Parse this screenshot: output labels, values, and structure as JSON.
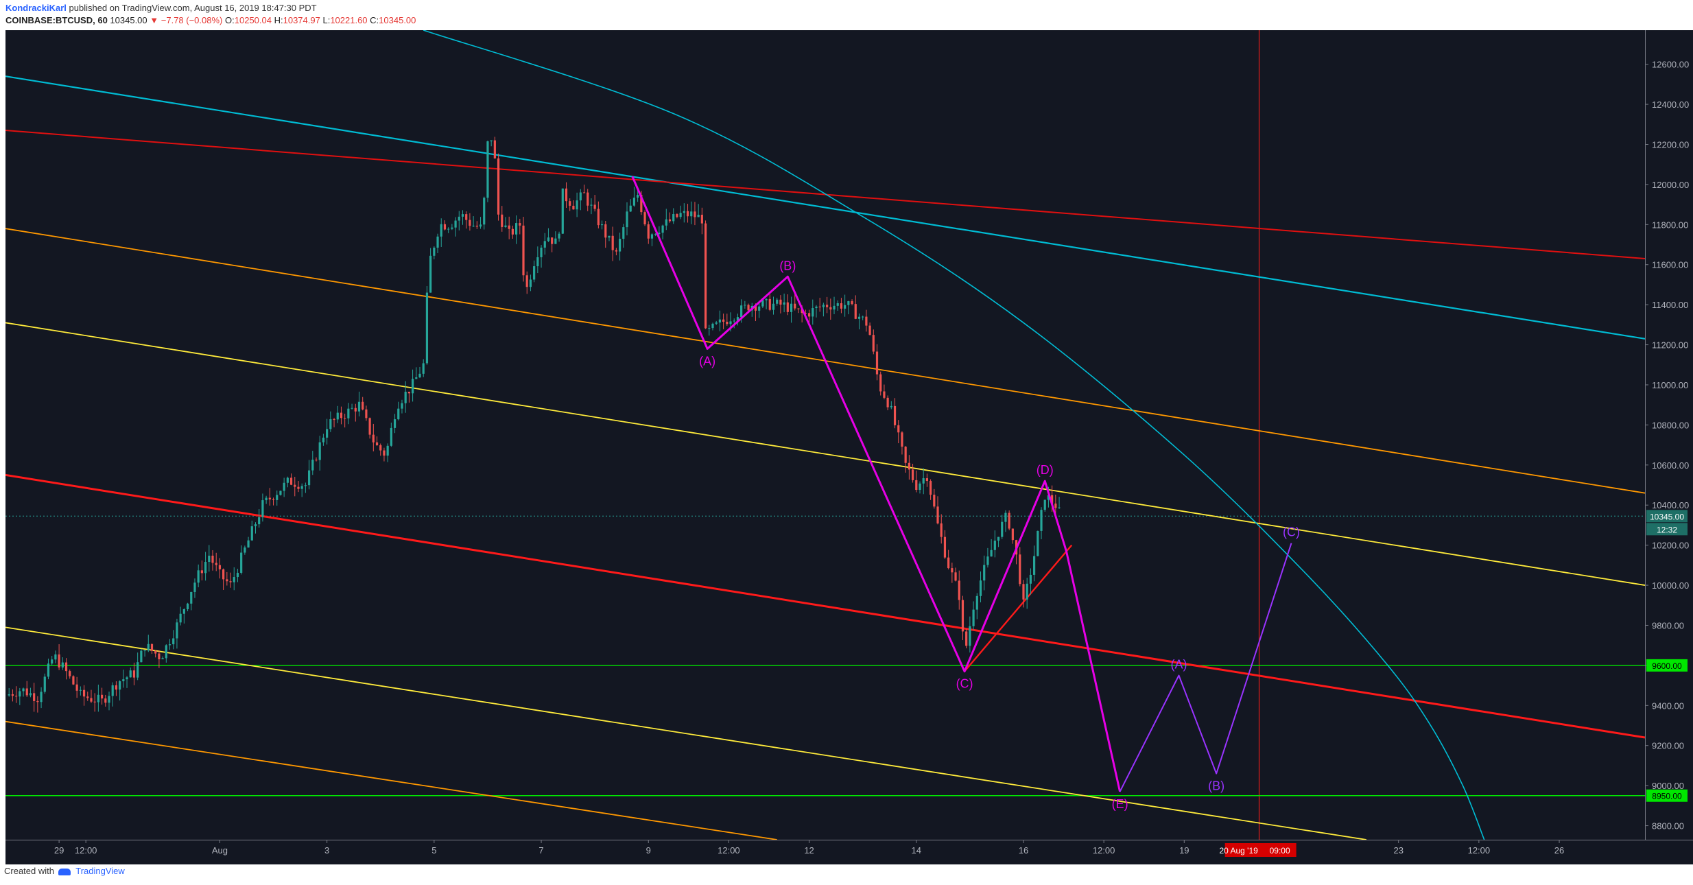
{
  "header": {
    "author": "KondrackiKarl",
    "published": "published on TradingView.com, August 16, 2019 18:47:30 PDT",
    "symbol": "COINBASE:BTCUSD, 60",
    "last": "10345.00",
    "change": "▼ −7.78 (−0.08%)",
    "o_label": "O:",
    "o_value": "10250.04",
    "h_label": "H:",
    "h_value": "10374.97",
    "l_label": "L:",
    "l_value": "10221.60",
    "c_label": "C:",
    "c_value": "10345.00"
  },
  "footer": {
    "created_with": "Created with",
    "brand": "TradingView"
  },
  "colors": {
    "background": "#131722",
    "up": "#26a69a",
    "down": "#ef5350",
    "cyan": "#00bcd4",
    "red": "#ff1a1a",
    "orange": "#ff9800",
    "yellow": "#ffeb3b",
    "green": "#00e600",
    "magenta": "#e600e6",
    "purple": "#9933ff",
    "vline": "#b71c1c"
  },
  "chart_data": {
    "type": "candlestick",
    "symbol": "COINBASE:BTCUSD",
    "timeframe": "60",
    "x_axis": {
      "unit": "days from July 28, 2019 (x = 1 is Jul 29)",
      "range": [
        0.0,
        30.6
      ],
      "ticks": [
        {
          "x": 1.0,
          "label": "29"
        },
        {
          "x": 1.5,
          "label": "12:00"
        },
        {
          "x": 4.0,
          "label": "Aug"
        },
        {
          "x": 6.0,
          "label": "3"
        },
        {
          "x": 8.0,
          "label": "5"
        },
        {
          "x": 10.0,
          "label": "7"
        },
        {
          "x": 12.0,
          "label": "9"
        },
        {
          "x": 13.5,
          "label": "12:00"
        },
        {
          "x": 15.0,
          "label": "12"
        },
        {
          "x": 17.0,
          "label": "14"
        },
        {
          "x": 19.0,
          "label": "16"
        },
        {
          "x": 20.5,
          "label": "12:00"
        },
        {
          "x": 22.0,
          "label": "19"
        },
        {
          "x": 26.0,
          "label": "23"
        },
        {
          "x": 27.5,
          "label": "12:00"
        },
        {
          "x": 29.0,
          "label": "26"
        }
      ],
      "highlight": {
        "x": 23.4,
        "label": "20 Aug '19",
        "time": "09:00"
      }
    },
    "y_axis": {
      "range": [
        8730,
        12770
      ],
      "ticks": [
        8800,
        9000,
        9200,
        9400,
        9600,
        9800,
        10000,
        10200,
        10400,
        10600,
        10800,
        11000,
        11200,
        11400,
        11600,
        11800,
        12000,
        12200,
        12400,
        12600
      ],
      "tick_labels": [
        "8800.00",
        "9000.00",
        "9200.00",
        "9400.00",
        "9600.00",
        "9800.00",
        "10000.00",
        "10200.00",
        "10400.00",
        "10600.00",
        "10800.00",
        "11000.00",
        "11200.00",
        "11400.00",
        "11600.00",
        "11800.00",
        "12000.00",
        "12200.00",
        "12400.00",
        "12600.00"
      ]
    },
    "price_path": [
      [
        0.0,
        9450
      ],
      [
        0.3,
        9480
      ],
      [
        0.6,
        9440
      ],
      [
        0.9,
        9650
      ],
      [
        1.1,
        9580
      ],
      [
        1.4,
        9450
      ],
      [
        1.8,
        9420
      ],
      [
        2.1,
        9520
      ],
      [
        2.4,
        9560
      ],
      [
        2.6,
        9700
      ],
      [
        2.9,
        9640
      ],
      [
        3.2,
        9800
      ],
      [
        3.5,
        10000
      ],
      [
        3.8,
        10150
      ],
      [
        4.0,
        10050
      ],
      [
        4.2,
        10000
      ],
      [
        4.5,
        10200
      ],
      [
        4.8,
        10400
      ],
      [
        5.0,
        10450
      ],
      [
        5.3,
        10520
      ],
      [
        5.6,
        10500
      ],
      [
        5.8,
        10650
      ],
      [
        6.0,
        10800
      ],
      [
        6.3,
        10850
      ],
      [
        6.6,
        10900
      ],
      [
        6.9,
        10700
      ],
      [
        7.1,
        10650
      ],
      [
        7.3,
        10900
      ],
      [
        7.6,
        11000
      ],
      [
        7.8,
        11100
      ],
      [
        7.9,
        11600
      ],
      [
        8.1,
        11800
      ],
      [
        8.3,
        11800
      ],
      [
        8.5,
        11850
      ],
      [
        8.7,
        11800
      ],
      [
        8.9,
        11780
      ],
      [
        9.0,
        12200
      ],
      [
        9.1,
        12250
      ],
      [
        9.2,
        11850
      ],
      [
        9.4,
        11750
      ],
      [
        9.6,
        11800
      ],
      [
        9.7,
        11450
      ],
      [
        9.9,
        11650
      ],
      [
        10.1,
        11750
      ],
      [
        10.3,
        11700
      ],
      [
        10.4,
        11950
      ],
      [
        10.6,
        11900
      ],
      [
        10.8,
        11950
      ],
      [
        11.0,
        11850
      ],
      [
        11.2,
        11750
      ],
      [
        11.4,
        11650
      ],
      [
        11.6,
        11850
      ],
      [
        11.8,
        11950
      ],
      [
        12.0,
        11750
      ],
      [
        12.3,
        11800
      ],
      [
        12.6,
        11850
      ],
      [
        12.8,
        11850
      ],
      [
        13.0,
        11830
      ],
      [
        13.05,
        11250
      ],
      [
        13.3,
        11300
      ],
      [
        13.6,
        11350
      ],
      [
        13.9,
        11400
      ],
      [
        14.2,
        11400
      ],
      [
        14.5,
        11400
      ],
      [
        14.9,
        11350
      ],
      [
        15.3,
        11400
      ],
      [
        15.7,
        11400
      ],
      [
        16.1,
        11300
      ],
      [
        16.3,
        11000
      ],
      [
        16.5,
        10900
      ],
      [
        16.8,
        10600
      ],
      [
        17.0,
        10500
      ],
      [
        17.2,
        10550
      ],
      [
        17.4,
        10300
      ],
      [
        17.6,
        10100
      ],
      [
        17.8,
        9950
      ],
      [
        17.9,
        9650
      ],
      [
        18.1,
        9950
      ],
      [
        18.3,
        10100
      ],
      [
        18.5,
        10250
      ],
      [
        18.7,
        10350
      ],
      [
        18.9,
        10100
      ],
      [
        19.0,
        9900
      ],
      [
        19.2,
        10150
      ],
      [
        19.4,
        10450
      ],
      [
        19.6,
        10400
      ],
      [
        19.7,
        10345
      ]
    ],
    "levels": [
      {
        "price": 9600,
        "label": "9600.00",
        "color": "#00e600"
      },
      {
        "price": 8950,
        "label": "8950.00",
        "color": "#00e600"
      }
    ],
    "last_price": {
      "price": 10345,
      "label": "10345.00",
      "countdown": "12:32"
    },
    "trendlines": [
      {
        "color": "#00bcd4",
        "width": 2.2,
        "points": [
          [
            0.0,
            12540
          ],
          [
            30.6,
            11230
          ]
        ]
      },
      {
        "color": "#e01010",
        "width": 2.0,
        "points": [
          [
            0.0,
            12270
          ],
          [
            30.6,
            11630
          ]
        ]
      },
      {
        "color": "#ff9800",
        "width": 1.8,
        "points": [
          [
            0.0,
            11780
          ],
          [
            30.6,
            10460
          ]
        ]
      },
      {
        "color": "#ffeb3b",
        "width": 1.8,
        "points": [
          [
            0.0,
            11310
          ],
          [
            30.6,
            10000
          ]
        ]
      },
      {
        "color": "#ff1a1a",
        "width": 3.0,
        "points": [
          [
            0.0,
            10550
          ],
          [
            30.6,
            9240
          ]
        ]
      },
      {
        "color": "#ffeb3b",
        "width": 1.8,
        "points": [
          [
            0.0,
            9790
          ],
          [
            25.4,
            8730
          ]
        ]
      },
      {
        "color": "#ff9800",
        "width": 1.8,
        "points": [
          [
            0.0,
            9320
          ],
          [
            14.4,
            8730
          ]
        ]
      },
      {
        "color": "#ff1a1a",
        "width": 2.4,
        "points": [
          [
            17.9,
            9570
          ],
          [
            19.9,
            10200
          ]
        ]
      }
    ],
    "arc": {
      "color": "#00bcd4",
      "points": [
        [
          7.8,
          12770
        ],
        [
          12.5,
          12350
        ],
        [
          16.0,
          11840
        ],
        [
          19.0,
          11310
        ],
        [
          22.0,
          10650
        ],
        [
          24.3,
          10050
        ],
        [
          25.8,
          9600
        ],
        [
          26.6,
          9300
        ],
        [
          27.2,
          9000
        ],
        [
          27.6,
          8730
        ]
      ]
    },
    "wave_primary": {
      "color": "#e600e6",
      "points": [
        [
          11.7,
          12040
        ],
        [
          13.1,
          11180
        ],
        [
          14.6,
          11540
        ],
        [
          17.9,
          9570
        ],
        [
          19.4,
          10520
        ],
        [
          19.8,
          10170
        ],
        [
          20.8,
          8970
        ]
      ],
      "labels": [
        {
          "text": "(A)",
          "x": 13.1,
          "y": 11180,
          "pos": "below"
        },
        {
          "text": "(B)",
          "x": 14.6,
          "y": 11540,
          "pos": "above"
        },
        {
          "text": "(C)",
          "x": 17.9,
          "y": 9570,
          "pos": "below"
        },
        {
          "text": "(D)",
          "x": 19.4,
          "y": 10520,
          "pos": "above"
        },
        {
          "text": "(E)",
          "x": 20.8,
          "y": 8970,
          "pos": "below"
        }
      ]
    },
    "wave_secondary": {
      "color": "#9933ff",
      "points": [
        [
          20.8,
          8970
        ],
        [
          21.9,
          9550
        ],
        [
          22.6,
          9060
        ],
        [
          24.0,
          10210
        ]
      ],
      "labels": [
        {
          "text": "(A)",
          "x": 21.9,
          "y": 9550,
          "pos": "above"
        },
        {
          "text": "(B)",
          "x": 22.6,
          "y": 9060,
          "pos": "below"
        },
        {
          "text": "(C)",
          "x": 24.0,
          "y": 10210,
          "pos": "above"
        }
      ]
    },
    "vertical_line": {
      "x": 23.4,
      "color": "#b71c1c"
    }
  }
}
